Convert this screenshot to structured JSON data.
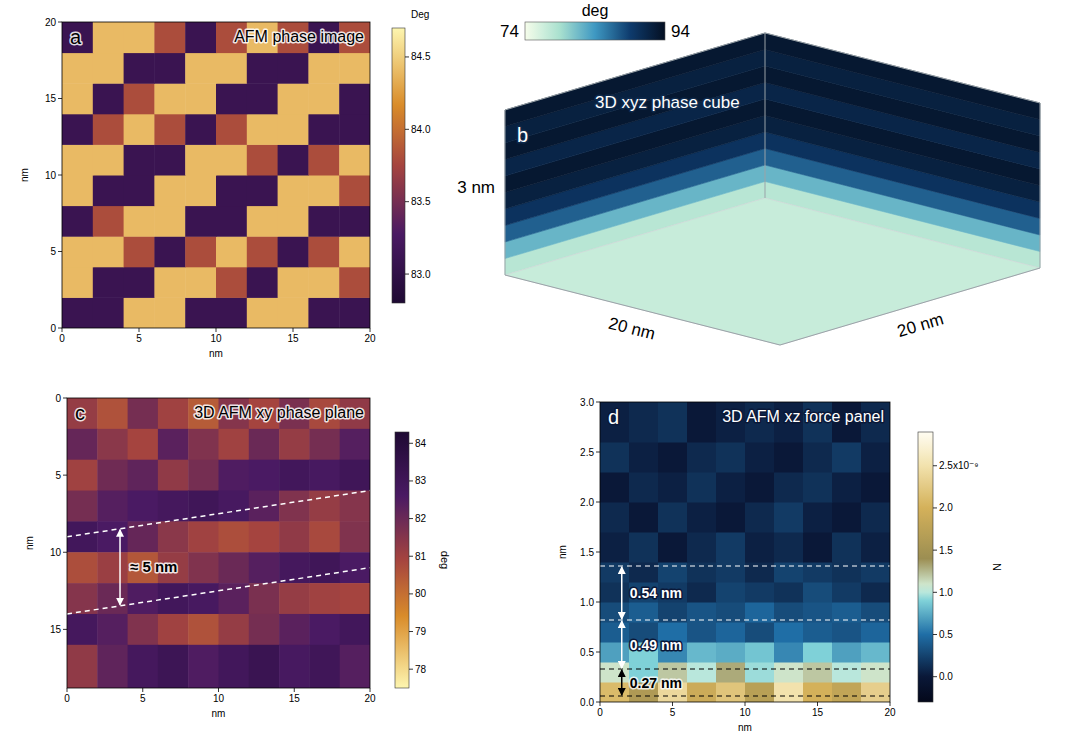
{
  "chart_data": [
    {
      "type": "heatmap",
      "panel": "a",
      "title": "AFM phase image",
      "x_label": "nm",
      "y_label": "nm",
      "xlim": [
        0,
        20
      ],
      "ylim": [
        0,
        20
      ],
      "xticks": [
        0,
        5,
        10,
        15,
        20
      ],
      "yticks": [
        0,
        5,
        10,
        15,
        20
      ],
      "x_edges": [
        0,
        2,
        4,
        6,
        8,
        10,
        12,
        14,
        16,
        18,
        20
      ],
      "y_edges": [
        0,
        2,
        4,
        6,
        8,
        10,
        12,
        14,
        16,
        18,
        20
      ],
      "cells": [
        [
          83.1,
          83.1,
          84.4,
          84.4,
          83.1,
          83.1,
          84.4,
          84.4,
          83.1,
          83.1
        ],
        [
          84.4,
          83.1,
          83.1,
          84.4,
          84.4,
          83.8,
          83.1,
          84.4,
          84.4,
          83.8
        ],
        [
          84.4,
          84.4,
          83.8,
          83.1,
          83.8,
          84.4,
          83.8,
          83.1,
          83.8,
          84.4
        ],
        [
          83.1,
          83.8,
          84.4,
          84.4,
          83.1,
          83.1,
          84.4,
          84.4,
          83.1,
          83.1
        ],
        [
          84.4,
          83.1,
          83.1,
          84.4,
          84.4,
          83.1,
          83.1,
          84.4,
          84.4,
          83.8
        ],
        [
          84.4,
          84.4,
          83.1,
          83.1,
          84.4,
          84.4,
          83.8,
          83.1,
          83.8,
          84.4
        ],
        [
          83.1,
          83.8,
          84.4,
          83.8,
          83.1,
          83.8,
          84.4,
          84.4,
          83.1,
          83.1
        ],
        [
          84.4,
          83.1,
          83.8,
          84.4,
          84.4,
          83.1,
          83.1,
          84.4,
          84.4,
          83.1
        ],
        [
          84.4,
          84.4,
          83.1,
          83.1,
          84.4,
          84.4,
          83.1,
          83.1,
          84.4,
          84.4
        ],
        [
          83.1,
          84.4,
          84.4,
          83.8,
          83.1,
          83.8,
          84.4,
          83.8,
          83.1,
          83.8
        ]
      ],
      "colorbar": {
        "label": "Deg",
        "range": [
          82.8,
          84.7
        ],
        "ticks": [
          {
            "value": 83,
            "label": "83.0"
          },
          83.5,
          {
            "value": 84,
            "label": "84.0"
          },
          84.5
        ]
      }
    },
    {
      "type": "volume",
      "panel": "b",
      "title": "3D xyz phase cube",
      "z_label": "3 nm",
      "x_label": "20 nm",
      "y_label": "20 nm",
      "z_edges": [
        0,
        0.3,
        0.6,
        0.9,
        1.2,
        1.5,
        1.8,
        2.1,
        2.4,
        2.7,
        3
      ],
      "wall_values": [
        78,
        82,
        87,
        90,
        92,
        93,
        91.5,
        93,
        92,
        93
      ],
      "floor_value": 77,
      "colorbar": {
        "label": "deg",
        "range": [
          74,
          94
        ],
        "ticks": [
          74,
          94
        ]
      }
    },
    {
      "type": "heatmap",
      "panel": "c",
      "title": "3D AFM xy phase plane",
      "x_label": "nm",
      "y_label": "nm",
      "xlim": [
        0,
        20
      ],
      "ylim": [
        18.8,
        0
      ],
      "xticks": [
        0,
        5,
        10,
        15,
        20
      ],
      "yticks": [
        0,
        5,
        10,
        15
      ],
      "x_edges": [
        0,
        2,
        4,
        6,
        8,
        10,
        12,
        14,
        16,
        18,
        20
      ],
      "y_edges": [
        0,
        2,
        4,
        6,
        8,
        10,
        12,
        14,
        16,
        18.8
      ],
      "cells": [
        [
          81.2,
          80.6,
          81.8,
          81.0,
          80.4,
          81.5,
          80.9,
          81.7,
          80.8,
          81.3
        ],
        [
          82.1,
          81.4,
          80.9,
          82.3,
          81.6,
          81.0,
          82.0,
          81.2,
          81.8,
          82.4
        ],
        [
          81.0,
          81.9,
          82.2,
          81.3,
          81.8,
          82.5,
          82.6,
          82.9,
          82.7,
          83.0
        ],
        [
          81.8,
          82.4,
          82.6,
          82.8,
          83.0,
          82.7,
          82.3,
          81.6,
          81.2,
          81.5
        ],
        [
          82.9,
          82.6,
          82.1,
          81.4,
          81.0,
          80.7,
          80.9,
          81.3,
          80.8,
          81.6
        ],
        [
          80.7,
          81.1,
          80.5,
          81.2,
          81.6,
          82.0,
          82.4,
          82.8,
          83.0,
          82.6
        ],
        [
          81.5,
          82.0,
          82.5,
          82.9,
          82.7,
          82.3,
          81.7,
          81.2,
          81.0,
          80.9
        ],
        [
          82.8,
          82.4,
          81.6,
          81.0,
          80.6,
          81.2,
          81.8,
          82.3,
          82.6,
          82.9
        ],
        [
          81.3,
          82.2,
          82.8,
          83.1,
          82.5,
          82.9,
          83.2,
          82.7,
          83.0,
          82.4
        ]
      ],
      "dashed_lines": [
        {
          "from": [
            0,
            9
          ],
          "to": [
            20,
            6
          ]
        },
        {
          "from": [
            0,
            14
          ],
          "to": [
            20,
            11
          ]
        }
      ],
      "annotations": [
        {
          "text": "≈ 5 nm"
        }
      ],
      "colorbar": {
        "label": "deg",
        "range": [
          77.5,
          84.3
        ],
        "ticks": [
          78,
          79,
          80,
          81,
          82,
          83,
          84
        ]
      }
    },
    {
      "type": "heatmap",
      "panel": "d",
      "title": "3D AFM xz force panel",
      "x_label": "nm",
      "y_label": "nm",
      "xlim": [
        0,
        20
      ],
      "ylim": [
        0,
        3
      ],
      "xticks": [
        0,
        5,
        10,
        15,
        20
      ],
      "yticks": [
        {
          "value": 0,
          "label": "0.0"
        },
        0.5,
        {
          "value": 1,
          "label": "1.0"
        },
        1.5,
        {
          "value": 2,
          "label": "2.0"
        },
        2.5,
        {
          "value": 3,
          "label": "3.0"
        }
      ],
      "x_edges": [
        0,
        2,
        4,
        6,
        8,
        10,
        12,
        14,
        16,
        18,
        20
      ],
      "y_edges": [
        0,
        0.2,
        0.4,
        0.6,
        0.8,
        1,
        1.2,
        1.4,
        1.7,
        2,
        2.3,
        2.6,
        3
      ],
      "cells": [
        [
          2.1e-09,
          1.6e-09,
          2.4e-09,
          1.9e-09,
          2.2e-09,
          1.7e-09,
          2.5e-09,
          2e-09,
          1.8e-09,
          2.3e-09
        ],
        [
          1.1e-09,
          9e-10,
          1.2e-09,
          1e-09,
          1.3e-09,
          9.5e-10,
          1.1e-09,
          1.2e-09,
          1e-09,
          1.1e-09
        ],
        [
          7e-10,
          9e-10,
          6e-10,
          8e-10,
          7.5e-10,
          8.5e-10,
          6e-10,
          9e-10,
          7e-10,
          8e-10
        ],
        [
          4e-10,
          3e-10,
          5e-10,
          3.5e-10,
          4.5e-10,
          3e-10,
          5e-10,
          4e-10,
          3.5e-10,
          4.5e-10
        ],
        [
          3e-10,
          4e-10,
          2.5e-10,
          3.5e-10,
          3e-10,
          4.5e-10,
          3e-10,
          3.5e-10,
          4e-10,
          3e-10
        ],
        [
          1.5e-10,
          2.5e-10,
          2e-10,
          1e-10,
          2.5e-10,
          2e-10,
          1.5e-10,
          3e-10,
          2e-10,
          1e-10
        ],
        [
          2e-10,
          1e-10,
          2.5e-10,
          1.5e-10,
          2e-10,
          1e-10,
          2.5e-10,
          2e-10,
          1.5e-10,
          2e-10
        ],
        [
          5e-11,
          1.5e-10,
          0,
          1e-10,
          2e-10,
          5e-11,
          1e-10,
          0,
          1.5e-10,
          5e-11
        ],
        [
          1e-10,
          0,
          1.5e-10,
          5e-11,
          0,
          1e-10,
          2e-10,
          5e-11,
          0,
          1e-10
        ],
        [
          0,
          1e-10,
          5e-11,
          1.5e-10,
          5e-11,
          0,
          1e-10,
          1.5e-10,
          5e-11,
          0
        ],
        [
          1.5e-10,
          5e-11,
          0,
          1e-10,
          1.5e-10,
          5e-11,
          0,
          1e-10,
          2e-10,
          5e-11
        ],
        [
          5e-11,
          1e-10,
          1.5e-10,
          0,
          5e-11,
          1e-10,
          5e-11,
          1.5e-10,
          0,
          1e-10
        ]
      ],
      "dashed_lines": [
        1.36,
        0.82,
        0.33,
        0.06
      ],
      "annotations": [
        {
          "text": "0.54 nm"
        },
        {
          "text": "0.49 nm"
        },
        {
          "text": "0.27 nm"
        }
      ],
      "colorbar": {
        "label": "N",
        "range": [
          -3e-10,
          2.9e-09
        ],
        "ticks": [
          {
            "value": 0,
            "label": "0.0"
          },
          {
            "value": 5e-10,
            "label": "0.5"
          },
          {
            "value": 1e-09,
            "label": "1.0"
          },
          {
            "value": 1.5e-09,
            "label": "1.5"
          },
          {
            "value": 2e-09,
            "label": "2.0"
          },
          {
            "value": 2.5e-09,
            "label": "2.5x10⁻⁹"
          }
        ]
      }
    }
  ]
}
